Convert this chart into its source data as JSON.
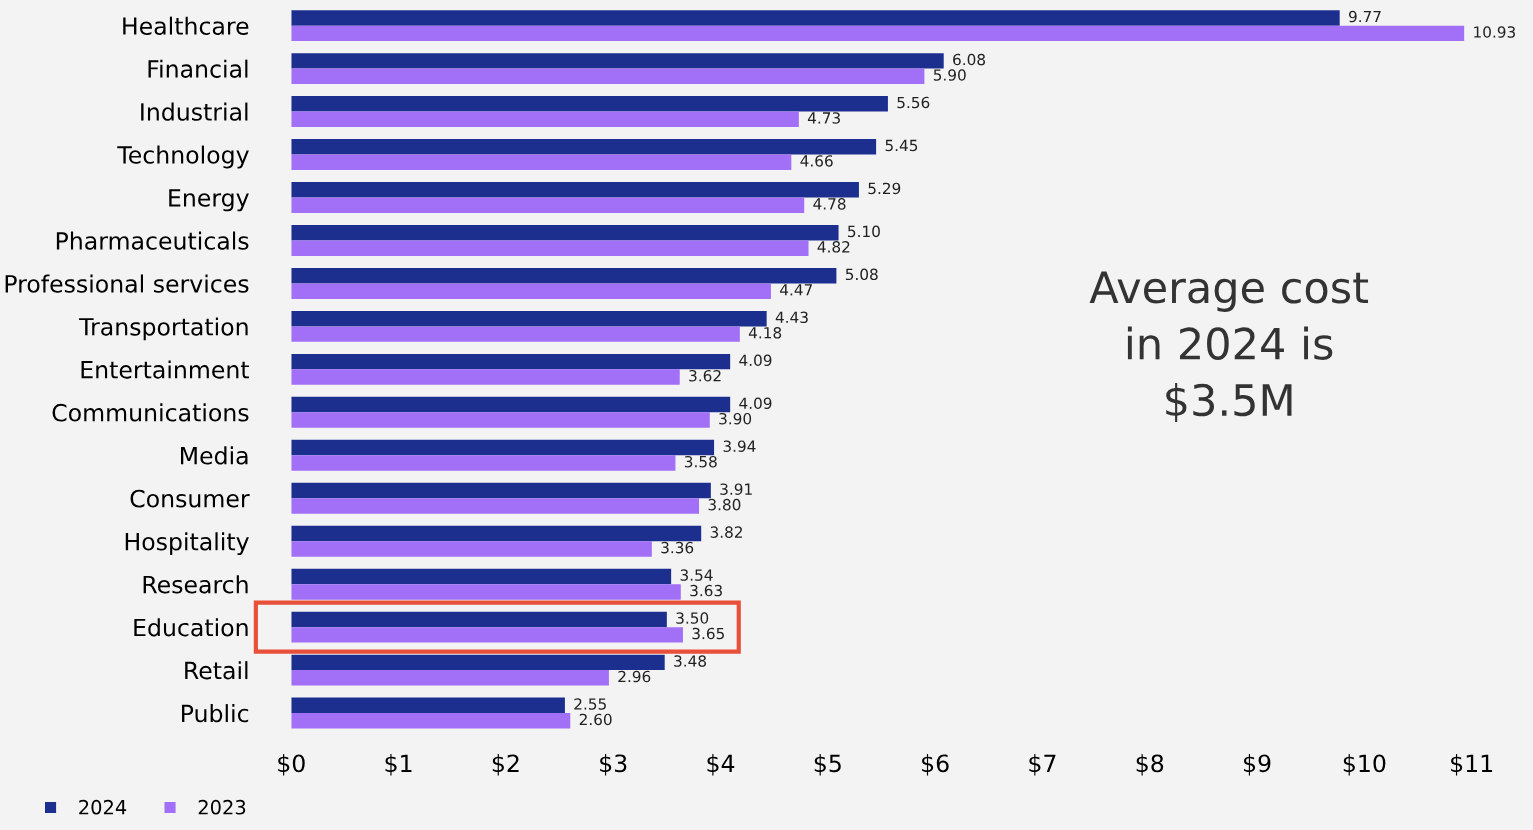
{
  "chart_data": {
    "type": "bar",
    "orientation": "horizontal",
    "categories": [
      "Healthcare",
      "Financial",
      "Industrial",
      "Technology",
      "Energy",
      "Pharmaceuticals",
      "Professional services",
      "Transportation",
      "Entertainment",
      "Communications",
      "Media",
      "Consumer",
      "Hospitality",
      "Research",
      "Education",
      "Retail",
      "Public"
    ],
    "series": [
      {
        "name": "2024",
        "color": "#1c2f8f",
        "values": [
          9.77,
          6.08,
          5.56,
          5.45,
          5.29,
          5.1,
          5.08,
          4.43,
          4.09,
          4.09,
          3.94,
          3.91,
          3.82,
          3.54,
          3.5,
          3.48,
          2.55
        ],
        "value_labels": [
          "9.77",
          "6.08",
          "5.56",
          "5.45",
          "5.29",
          "5.10",
          "5.08",
          "4.43",
          "4.09",
          "4.09",
          "3.94",
          "3.91",
          "3.82",
          "3.54",
          "3.50",
          "3.48",
          "2.55"
        ]
      },
      {
        "name": "2023",
        "color": "#a26ff7",
        "values": [
          10.93,
          5.9,
          4.73,
          4.66,
          4.78,
          4.82,
          4.47,
          4.18,
          3.62,
          3.9,
          3.58,
          3.8,
          3.36,
          3.63,
          3.65,
          2.96,
          2.6
        ],
        "value_labels": [
          "10.93",
          "5.90",
          "4.73",
          "4.66",
          "4.78",
          "4.82",
          "4.47",
          "4.18",
          "3.62",
          "3.90",
          "3.58",
          "3.80",
          "3.36",
          "3.63",
          "3.65",
          "2.96",
          "2.60"
        ]
      }
    ],
    "xlim": [
      0,
      11.5
    ],
    "xticks": [
      {
        "value": 0,
        "label": "$0"
      },
      {
        "value": 1,
        "label": "$1"
      },
      {
        "value": 2,
        "label": "$2"
      },
      {
        "value": 3,
        "label": "$3"
      },
      {
        "value": 4,
        "label": "$4"
      },
      {
        "value": 5,
        "label": "$5"
      },
      {
        "value": 6,
        "label": "$6"
      },
      {
        "value": 7,
        "label": "$7"
      },
      {
        "value": 8,
        "label": "$8"
      },
      {
        "value": 9,
        "label": "$9"
      },
      {
        "value": 10,
        "label": "$10"
      },
      {
        "value": 11,
        "label": "$11"
      }
    ],
    "legend": "bottom left",
    "grid": false,
    "annotations": [
      "Average cost\nin 2024 is\n$3.5M"
    ]
  }
}
